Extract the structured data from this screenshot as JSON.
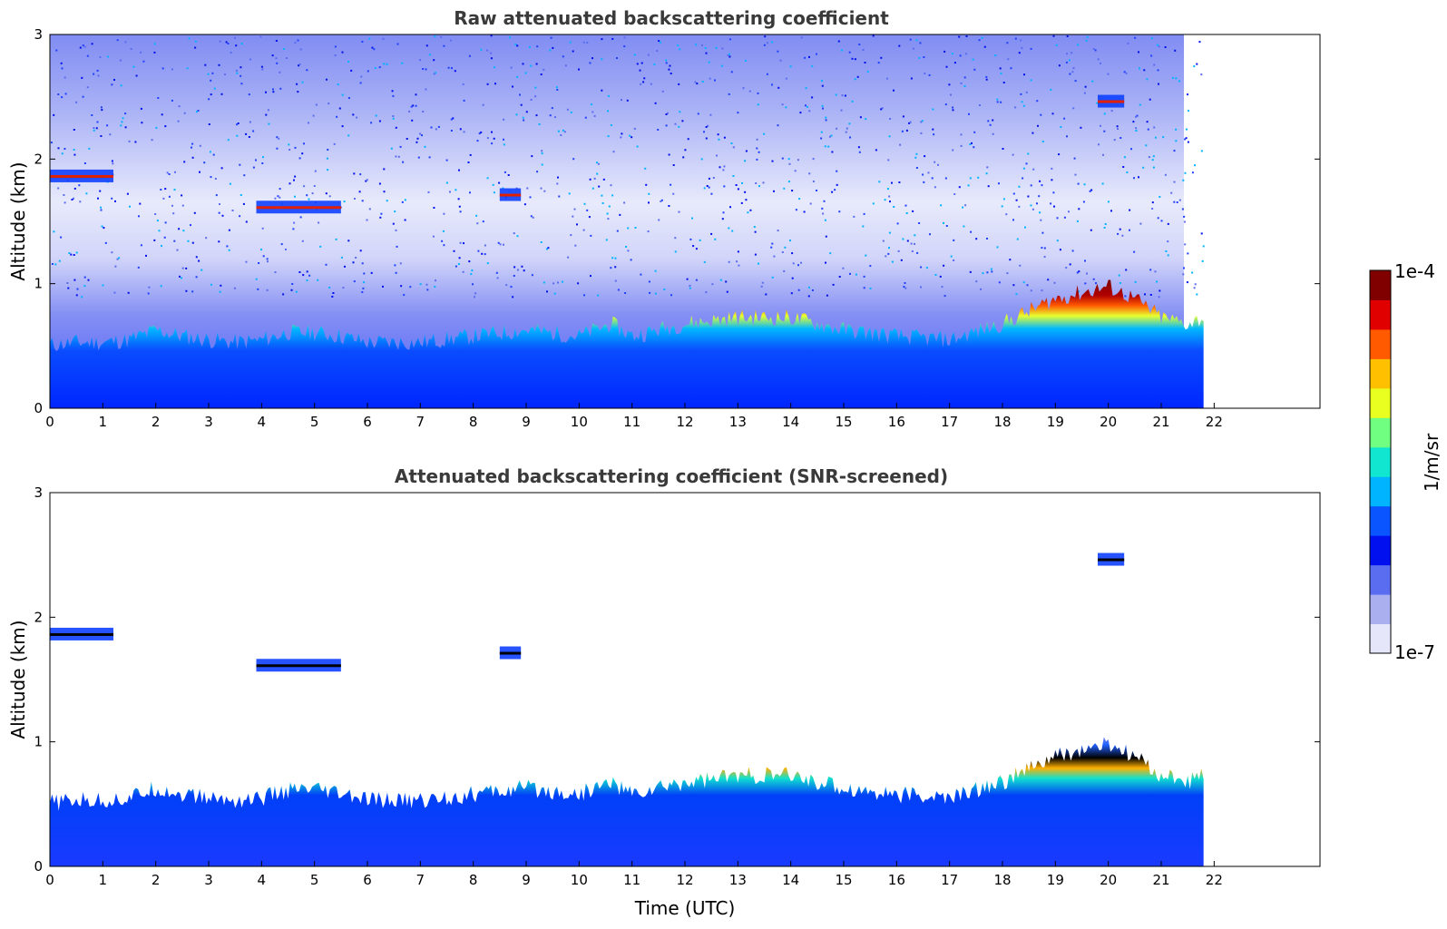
{
  "chart_data": [
    {
      "type": "heatmap",
      "title": "Raw attenuated backscattering coefficient",
      "xlabel": "",
      "ylabel": "Altitude (km)",
      "xlim": [
        0,
        24
      ],
      "ylim": [
        0,
        3
      ],
      "xticks": [
        "0",
        "1",
        "2",
        "3",
        "4",
        "5",
        "6",
        "7",
        "8",
        "9",
        "10",
        "11",
        "12",
        "13",
        "14",
        "15",
        "16",
        "17",
        "18",
        "19",
        "20",
        "21",
        "22"
      ],
      "yticks": [
        "0",
        "1",
        "2",
        "3"
      ],
      "data_end_time": 21.8,
      "boundary_layer_top_km": [
        [
          0,
          0.48
        ],
        [
          0.5,
          0.5
        ],
        [
          1,
          0.5
        ],
        [
          1.5,
          0.52
        ],
        [
          2,
          0.6
        ],
        [
          2.5,
          0.55
        ],
        [
          3,
          0.52
        ],
        [
          3.5,
          0.5
        ],
        [
          4,
          0.52
        ],
        [
          4.5,
          0.58
        ],
        [
          5,
          0.58
        ],
        [
          5.5,
          0.55
        ],
        [
          6,
          0.5
        ],
        [
          7,
          0.5
        ],
        [
          8,
          0.55
        ],
        [
          9,
          0.6
        ],
        [
          10,
          0.55
        ],
        [
          10.6,
          0.65
        ],
        [
          11,
          0.55
        ],
        [
          12,
          0.65
        ],
        [
          13,
          0.7
        ],
        [
          14,
          0.7
        ],
        [
          14.5,
          0.65
        ],
        [
          15,
          0.6
        ],
        [
          16,
          0.55
        ],
        [
          17,
          0.52
        ],
        [
          18,
          0.65
        ],
        [
          19,
          0.85
        ],
        [
          19.5,
          0.9
        ],
        [
          20,
          0.95
        ],
        [
          20.5,
          0.85
        ],
        [
          21,
          0.7
        ],
        [
          21.5,
          0.65
        ],
        [
          21.8,
          0.7
        ]
      ],
      "elevated_layers": [
        {
          "t_start": 0.0,
          "t_end": 1.2,
          "alt_km": 1.85
        },
        {
          "t_start": 3.9,
          "t_end": 5.5,
          "alt_km": 1.6
        },
        {
          "t_start": 8.5,
          "t_end": 8.9,
          "alt_km": 1.7
        },
        {
          "t_start": 19.8,
          "t_end": 20.3,
          "alt_km": 2.45
        }
      ]
    },
    {
      "type": "heatmap",
      "title": "Attenuated backscattering coefficient (SNR-screened)",
      "xlabel": "Time (UTC)",
      "ylabel": "Altitude (km)",
      "xlim": [
        0,
        24
      ],
      "ylim": [
        0,
        3
      ],
      "xticks": [
        "0",
        "1",
        "2",
        "3",
        "4",
        "5",
        "6",
        "7",
        "8",
        "9",
        "10",
        "11",
        "12",
        "13",
        "14",
        "15",
        "16",
        "17",
        "18",
        "19",
        "20",
        "21",
        "22"
      ],
      "yticks": [
        "0",
        "1",
        "2",
        "3"
      ],
      "data_end_time": 21.8
    }
  ],
  "colorbar": {
    "label": "1/m/sr",
    "max_label": "1e-4",
    "min_label": "1e-7",
    "colormap": [
      "#e6e6fa",
      "#aab0ef",
      "#5a6cf0",
      "#0010ee",
      "#0a55ff",
      "#00b4ff",
      "#10e6d0",
      "#70ff80",
      "#e8ff20",
      "#ffc000",
      "#ff5a00",
      "#e00000",
      "#800000"
    ]
  }
}
